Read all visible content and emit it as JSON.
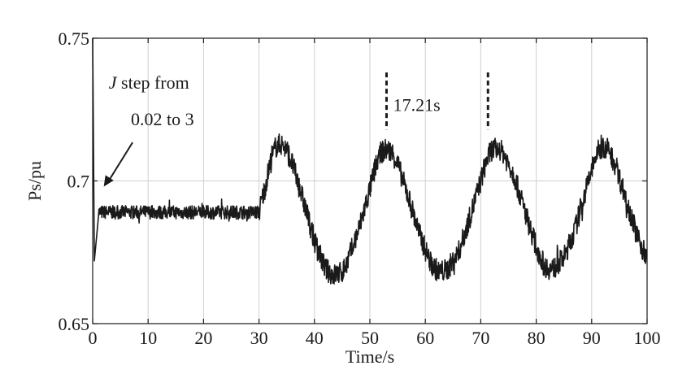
{
  "chart_data": {
    "type": "line",
    "title": "",
    "xlabel": "Time/s",
    "ylabel": "Ps/pu",
    "xlim": [
      0,
      100
    ],
    "ylim": [
      0.65,
      0.75
    ],
    "xticks": [
      0,
      10,
      20,
      30,
      40,
      50,
      60,
      70,
      80,
      90,
      100
    ],
    "xtick_labels": [
      "0",
      "10",
      "20",
      "30",
      "40",
      "50",
      "60",
      "70",
      "80",
      "90",
      "100"
    ],
    "yticks": [
      0.65,
      0.7,
      0.75
    ],
    "ytick_labels": [
      "0.65",
      "0.7",
      "0.75"
    ],
    "grid": true,
    "legend": "none",
    "line_color": "#1a1a1a",
    "series": [
      {
        "name": "",
        "note_noise_band_pu": 0.004,
        "x": [
          0,
          0.3,
          1,
          5,
          10,
          15,
          20,
          25,
          30,
          31,
          32,
          33,
          34,
          35,
          36,
          38,
          40,
          42,
          43.5,
          45,
          46,
          48,
          50,
          51,
          52,
          53,
          54,
          55,
          57,
          59,
          61,
          62.5,
          64,
          66,
          68,
          70,
          71,
          72,
          73,
          74,
          76,
          78,
          80,
          81.5,
          83,
          85,
          87,
          89,
          90,
          91,
          92,
          93,
          94,
          96,
          98,
          100
        ],
        "y": [
          0.75,
          0.672,
          0.689,
          0.689,
          0.689,
          0.689,
          0.689,
          0.689,
          0.689,
          0.697,
          0.706,
          0.712,
          0.713,
          0.711,
          0.706,
          0.693,
          0.679,
          0.669,
          0.667,
          0.668,
          0.672,
          0.683,
          0.697,
          0.705,
          0.71,
          0.711,
          0.71,
          0.706,
          0.694,
          0.681,
          0.671,
          0.668,
          0.669,
          0.675,
          0.687,
          0.7,
          0.707,
          0.711,
          0.711,
          0.71,
          0.702,
          0.689,
          0.677,
          0.67,
          0.669,
          0.673,
          0.683,
          0.697,
          0.704,
          0.71,
          0.712,
          0.711,
          0.707,
          0.695,
          0.682,
          0.672
        ]
      }
    ],
    "annotations": [
      {
        "text_pre_italic": "J",
        "text": " step from",
        "text_line2": "0.02 to 3",
        "arrow_target": [
          2,
          0.698
        ]
      },
      {
        "text": "17.21s",
        "marker_x": [
          53,
          71.3
        ],
        "marker_y": [
          0.718,
          0.738
        ]
      }
    ]
  }
}
